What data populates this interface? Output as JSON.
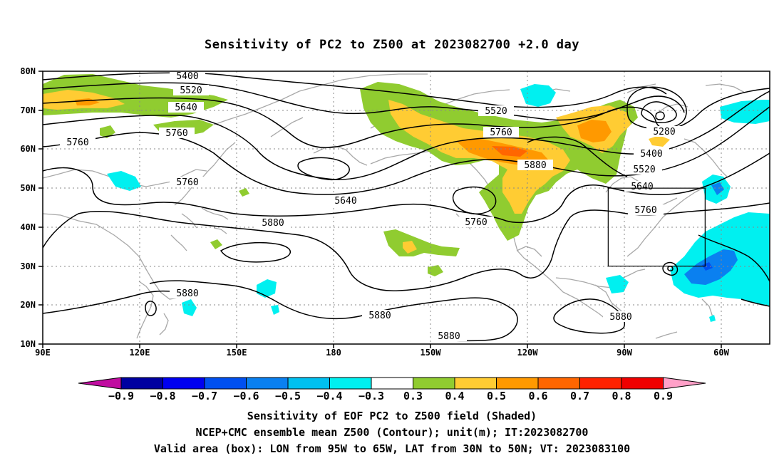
{
  "title": "Sensitivity of PC2 to Z500 at 2023082700 +2.0 day",
  "lon_ticks": [
    "90E",
    "120E",
    "150E",
    "180",
    "150W",
    "120W",
    "90W",
    "60W"
  ],
  "lat_ticks": [
    "80N",
    "70N",
    "60N",
    "50N",
    "40N",
    "30N",
    "20N",
    "10N"
  ],
  "contour_labels": [
    "5400",
    "5520",
    "5640",
    "5760",
    "5760",
    "5520",
    "5640",
    "5760",
    "5880",
    "5760",
    "5880",
    "5280",
    "5400",
    "5520",
    "5640",
    "5760",
    "5880",
    "5880",
    "5880",
    "5760",
    "5880"
  ],
  "colorbar": {
    "levels": [
      "-0.9",
      "-0.8",
      "-0.7",
      "-0.6",
      "-0.5",
      "-0.4",
      "-0.3",
      "0.3",
      "0.4",
      "0.5",
      "0.6",
      "0.7",
      "0.8",
      "0.9"
    ],
    "colors": [
      "#c00ca0",
      "#0000a0",
      "#0000f0",
      "#0050f0",
      "#0a80f0",
      "#00c0f0",
      "#00f0f0",
      "#ffffff",
      "#90cc30",
      "#ffcc33",
      "#ff9900",
      "#ff6600",
      "#ff2200",
      "#f00000",
      "#ffa0c8"
    ]
  },
  "valid_box": {
    "lon_min": -95,
    "lon_max": -65,
    "lat_min": 30,
    "lat_max": 50
  },
  "captions": [
    "Sensitivity of EOF PC2 to Z500 field (Shaded)",
    "NCEP+CMC ensemble mean Z500 (Contour); unit(m); IT:2023082700",
    "Valid area (box): LON from 95W to 65W, LAT from 30N to 50N; VT: 2023083100"
  ]
}
